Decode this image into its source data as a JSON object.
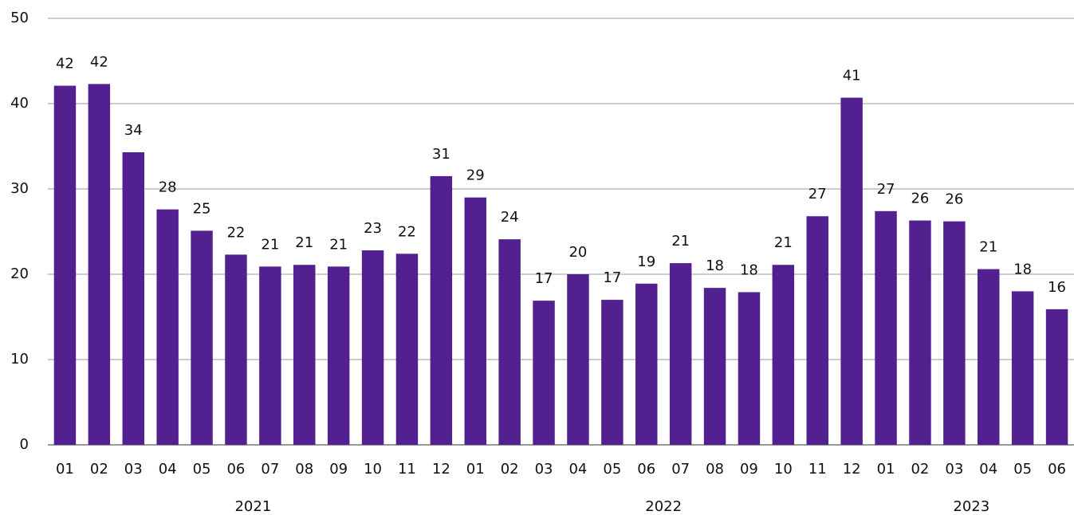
{
  "chart_data": {
    "type": "bar",
    "categories": [
      "01",
      "02",
      "03",
      "04",
      "05",
      "06",
      "07",
      "08",
      "09",
      "10",
      "11",
      "12",
      "01",
      "02",
      "03",
      "04",
      "05",
      "06",
      "07",
      "08",
      "09",
      "10",
      "11",
      "12",
      "01",
      "02",
      "03",
      "04",
      "05",
      "06"
    ],
    "x_groups": [
      {
        "label": "2021",
        "count": 12
      },
      {
        "label": "2022",
        "count": 12
      },
      {
        "label": "2023",
        "count": 6
      }
    ],
    "values": [
      42.1,
      42.3,
      34.3,
      27.6,
      25.1,
      22.3,
      20.9,
      21.1,
      20.9,
      22.8,
      22.4,
      31.5,
      29.0,
      24.1,
      16.9,
      20.0,
      17.0,
      18.9,
      21.3,
      18.4,
      17.9,
      21.1,
      26.8,
      40.7,
      27.4,
      26.3,
      26.2,
      20.6,
      18.0,
      15.9
    ],
    "value_labels": [
      "42",
      "42",
      "34",
      "28",
      "25",
      "22",
      "21",
      "21",
      "21",
      "23",
      "22",
      "31",
      "29",
      "24",
      "17",
      "20",
      "17",
      "19",
      "21",
      "18",
      "18",
      "21",
      "27",
      "41",
      "27",
      "26",
      "26",
      "21",
      "18",
      "16"
    ],
    "color": "#52218f",
    "ylim": [
      0,
      50
    ],
    "yticks": [
      0,
      10,
      20,
      30,
      40,
      50
    ],
    "grid": true
  }
}
